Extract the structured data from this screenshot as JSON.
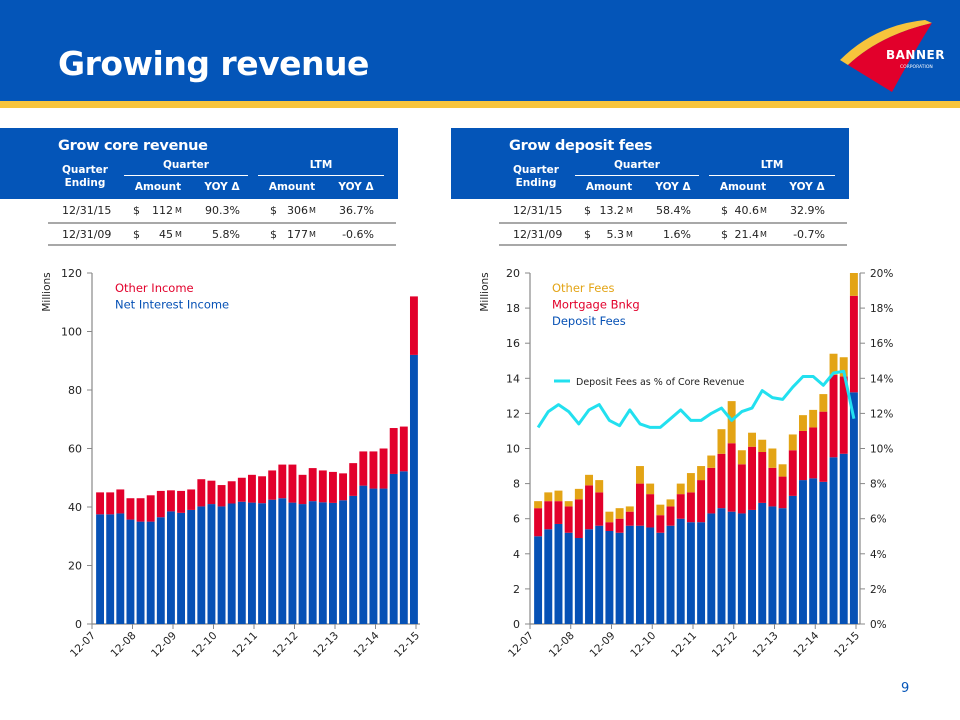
{
  "header": {
    "title": "Growing revenue",
    "logo_text": "BANNER",
    "logo_subtext": "CORPORATION"
  },
  "colors": {
    "brand_blue": "#0455b8",
    "brand_gold": "#f7c43c",
    "red": "#e2002b",
    "blue": "#0651b5",
    "gold": "#e3a415",
    "cyan": "#22e0ef"
  },
  "tables": [
    {
      "title": "Grow core revenue",
      "col_quarter_ending": [
        "Quarter",
        "Ending"
      ],
      "group_quarter": "Quarter",
      "group_ltm": "LTM",
      "col_amount": "Amount",
      "col_yoy": "YOY Δ",
      "rows": [
        {
          "date": "12/31/15",
          "q_dollar": "$",
          "q_amount": "112",
          "q_unit": "M",
          "q_yoy": "90.3%",
          "l_dollar": "$",
          "l_amount": "306",
          "l_unit": "M",
          "l_yoy": "36.7%"
        },
        {
          "date": "12/31/09",
          "q_dollar": "$",
          "q_amount": "45",
          "q_unit": "M",
          "q_yoy": "5.8%",
          "l_dollar": "$",
          "l_amount": "177",
          "l_unit": "M",
          "l_yoy": "-0.6%"
        }
      ]
    },
    {
      "title": "Grow deposit fees",
      "col_quarter_ending": [
        "Quarter",
        "Ending"
      ],
      "group_quarter": "Quarter",
      "group_ltm": "LTM",
      "col_amount": "Amount",
      "col_yoy": "YOY Δ",
      "rows": [
        {
          "date": "12/31/15",
          "q_dollar": "$",
          "q_amount": "13.2",
          "q_unit": "M",
          "q_yoy": "58.4%",
          "l_dollar": "$",
          "l_amount": "40.6",
          "l_unit": "M",
          "l_yoy": "32.9%"
        },
        {
          "date": "12/31/09",
          "q_dollar": "$",
          "q_amount": "5.3",
          "q_unit": "M",
          "q_yoy": "1.6%",
          "l_dollar": "$",
          "l_amount": "21.4",
          "l_unit": "M",
          "l_yoy": "-0.7%"
        }
      ]
    }
  ],
  "page_number": "9",
  "chart_data": [
    {
      "type": "bar",
      "stacked": true,
      "title": "",
      "xlabel": "",
      "ylabel": "Millions",
      "ylim": [
        0,
        120
      ],
      "yticks": [
        0,
        20,
        40,
        60,
        80,
        100,
        120
      ],
      "xtick_labels": [
        "12-07",
        "12-08",
        "12-09",
        "12-10",
        "12-11",
        "12-12",
        "12-13",
        "12-14",
        "12-15"
      ],
      "legend_position": "top-left",
      "series": [
        {
          "name": "Net Interest Income",
          "color": "#0651b5",
          "values": [
            37.5,
            37.5,
            37.8,
            35.7,
            35,
            35,
            36.5,
            38.5,
            38,
            39,
            40.2,
            41,
            40.2,
            41.2,
            41.8,
            41.5,
            41.3,
            42.5,
            43,
            41.5,
            41,
            42,
            41.6,
            41.4,
            42.3,
            43.8,
            47.3,
            46.3,
            46.3,
            51.3,
            52.2,
            92
          ]
        },
        {
          "name": "Other Income",
          "color": "#e2002b",
          "values": [
            7.5,
            7.5,
            8.2,
            7.3,
            8,
            9,
            9,
            7.2,
            7.5,
            7,
            9.3,
            8,
            7.3,
            7.6,
            8.2,
            9.5,
            9.2,
            10,
            11.5,
            13,
            10,
            11.3,
            10.9,
            10.6,
            9.2,
            11.2,
            11.7,
            12.7,
            13.7,
            15.7,
            15.3,
            20
          ]
        }
      ],
      "categories": [
        "Q1-08",
        "Q2-08",
        "Q3-08",
        "Q4-08",
        "Q1-09",
        "Q2-09",
        "Q3-09",
        "Q4-09",
        "Q1-10",
        "Q2-10",
        "Q3-10",
        "Q4-10",
        "Q1-11",
        "Q2-11",
        "Q3-11",
        "Q4-11",
        "Q1-12",
        "Q2-12",
        "Q3-12",
        "Q4-12",
        "Q1-13",
        "Q2-13",
        "Q3-13",
        "Q4-13",
        "Q1-14",
        "Q2-14",
        "Q3-14",
        "Q4-14",
        "Q1-15",
        "Q2-15",
        "Q3-15",
        "Q4-15"
      ]
    },
    {
      "type": "bar",
      "stacked": true,
      "title": "",
      "xlabel": "",
      "ylabel": "Millions",
      "ylim": [
        0,
        20
      ],
      "yticks": [
        0,
        2,
        4,
        6,
        8,
        10,
        12,
        14,
        16,
        18,
        20
      ],
      "y2lim": [
        0,
        20
      ],
      "y2ticks": [
        "0%",
        "2%",
        "4%",
        "6%",
        "8%",
        "10%",
        "12%",
        "14%",
        "16%",
        "18%",
        "20%"
      ],
      "xtick_labels": [
        "12-07",
        "12-08",
        "12-09",
        "12-10",
        "12-11",
        "12-12",
        "12-13",
        "12-14",
        "12-15"
      ],
      "legend_position": "top-left",
      "series": [
        {
          "name": "Deposit Fees",
          "color": "#0651b5",
          "values": [
            5.0,
            5.4,
            5.7,
            5.2,
            4.9,
            5.4,
            5.6,
            5.3,
            5.2,
            5.6,
            5.6,
            5.5,
            5.2,
            5.6,
            6.0,
            5.8,
            5.8,
            6.3,
            6.6,
            6.4,
            6.3,
            6.5,
            6.9,
            6.7,
            6.6,
            7.3,
            8.2,
            8.3,
            8.1,
            9.5,
            9.7,
            13.2
          ]
        },
        {
          "name": "Mortgage Bnkg",
          "color": "#e2002b",
          "values": [
            1.6,
            1.6,
            1.3,
            1.5,
            2.2,
            2.5,
            1.9,
            0.5,
            0.8,
            0.8,
            2.4,
            1.9,
            1.0,
            1.1,
            1.4,
            1.7,
            2.4,
            2.6,
            3.1,
            3.9,
            2.8,
            3.6,
            2.9,
            2.2,
            1.8,
            2.6,
            2.8,
            2.9,
            4.0,
            4.7,
            4.4,
            5.5
          ]
        },
        {
          "name": "Other Fees",
          "color": "#e3a415",
          "values": [
            0.4,
            0.5,
            0.6,
            0.3,
            0.6,
            0.6,
            0.7,
            0.6,
            0.6,
            0.3,
            1.0,
            0.6,
            0.6,
            0.4,
            0.6,
            1.1,
            0.8,
            0.7,
            1.4,
            2.4,
            0.8,
            0.8,
            0.7,
            1.1,
            0.7,
            0.9,
            0.9,
            1.0,
            1.0,
            1.2,
            1.1,
            1.3
          ]
        }
      ],
      "line_series": {
        "name": "Deposit Fees as % of Core Revenue",
        "color": "#22e0ef",
        "axis": "right",
        "values": [
          11.2,
          12.1,
          12.5,
          12.1,
          11.4,
          12.2,
          12.5,
          11.6,
          11.3,
          12.2,
          11.4,
          11.2,
          11.2,
          11.7,
          12.2,
          11.6,
          11.6,
          12.0,
          12.3,
          11.6,
          12.1,
          12.3,
          13.3,
          12.9,
          12.8,
          13.5,
          14.1,
          14.1,
          13.6,
          14.3,
          14.4,
          11.7
        ]
      },
      "categories": [
        "Q1-08",
        "Q2-08",
        "Q3-08",
        "Q4-08",
        "Q1-09",
        "Q2-09",
        "Q3-09",
        "Q4-09",
        "Q1-10",
        "Q2-10",
        "Q3-10",
        "Q4-10",
        "Q1-11",
        "Q2-11",
        "Q3-11",
        "Q4-11",
        "Q1-12",
        "Q2-12",
        "Q3-12",
        "Q4-12",
        "Q1-13",
        "Q2-13",
        "Q3-13",
        "Q4-13",
        "Q1-14",
        "Q2-14",
        "Q3-14",
        "Q4-14",
        "Q1-15",
        "Q2-15",
        "Q3-15",
        "Q4-15"
      ]
    }
  ]
}
